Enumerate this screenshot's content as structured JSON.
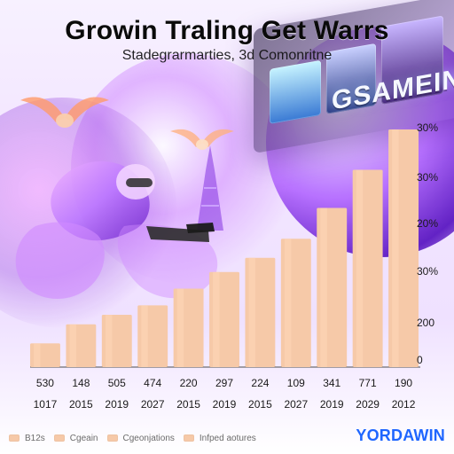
{
  "title": "Growin Traling Get Warrs",
  "subtitle": "Stadegrarmarties, 3d Comonritne",
  "billboard": {
    "label": "GSAMEIN"
  },
  "legend": {
    "items": [
      {
        "label": "B12s"
      },
      {
        "label": "Cgeain"
      },
      {
        "label": "Cgeonjations"
      },
      {
        "label": "Infped aotures"
      }
    ]
  },
  "brand": {
    "label": "YORDAWIN"
  },
  "colors": {
    "bar": "#f6c9a8",
    "bar_highlight": "#ffd7b8",
    "baseline": "#4b4b4b",
    "year_accent": "#e02525",
    "brand": "#1f66ff"
  },
  "icons": {
    "scene": [
      "bird-icon",
      "tower-icon",
      "soldier-icon",
      "billboard-icon"
    ]
  },
  "chart_data": {
    "type": "bar",
    "title": "Growin Traling Get Warrs",
    "subtitle": "Stadegrarmarties, 3d Comonritne",
    "xlabel": "",
    "ylabel": "",
    "right_axis": {
      "tick_labels": [
        "30%",
        "30%",
        "20%",
        "30%",
        "200",
        "0"
      ]
    },
    "x_tick_labels": [
      "1017",
      "2015",
      "2019",
      "2027",
      "2015",
      "2019",
      "2015",
      "2027",
      "2019",
      "2029",
      "2012"
    ],
    "value_labels": [
      "530",
      "148",
      "505",
      "474",
      "220",
      "297",
      "224",
      "109",
      "341",
      "771",
      "190"
    ],
    "values": [
      0.1,
      0.18,
      0.22,
      0.26,
      0.33,
      0.4,
      0.46,
      0.54,
      0.67,
      0.83,
      1.0
    ],
    "ylim": [
      0,
      1
    ],
    "grid": false,
    "legend": "bottom-left"
  }
}
